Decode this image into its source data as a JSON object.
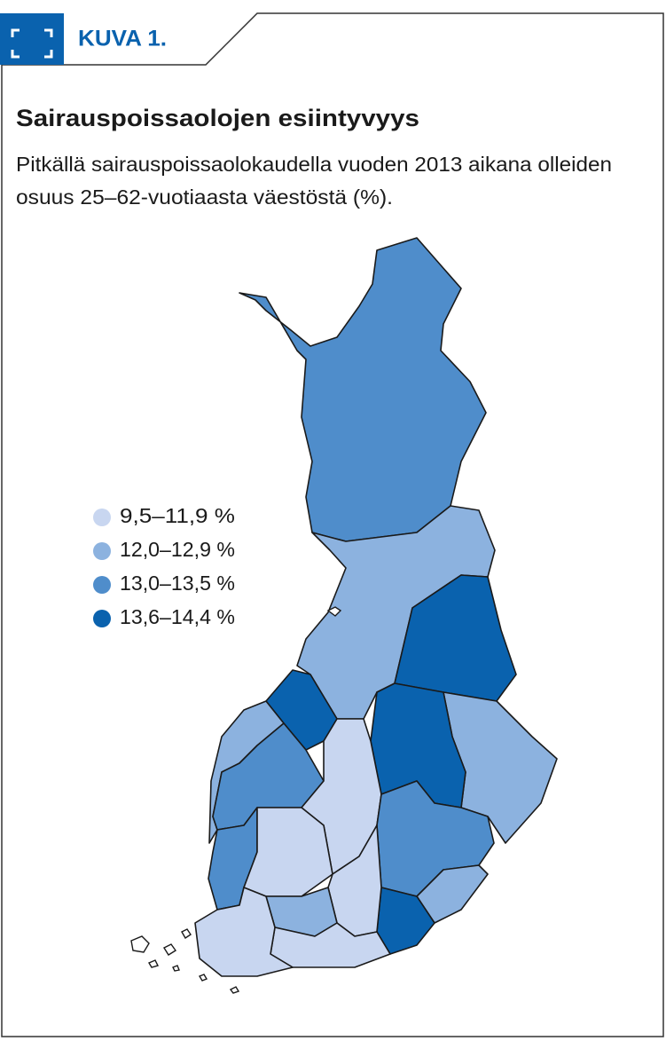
{
  "header": {
    "label": "KUVA 1."
  },
  "title": "Sairauspoissaolojen esiintyvyys",
  "subtitle": [
    "Pitkällä sairauspoissaolokaudella vuoden 2013 aikana olleiden",
    "osuus 25–62-vuotiaasta väestöstä (%)."
  ],
  "legend": [
    {
      "label": "9,5–11,9 %",
      "color": "#c8d6f0"
    },
    {
      "label": "12,0–12,9 %",
      "color": "#8cb2df"
    },
    {
      "label": "13,0–13,5 %",
      "color": "#4f8dcb"
    },
    {
      "label": "13,6–14,4 %",
      "color": "#0a62ae"
    }
  ]
}
